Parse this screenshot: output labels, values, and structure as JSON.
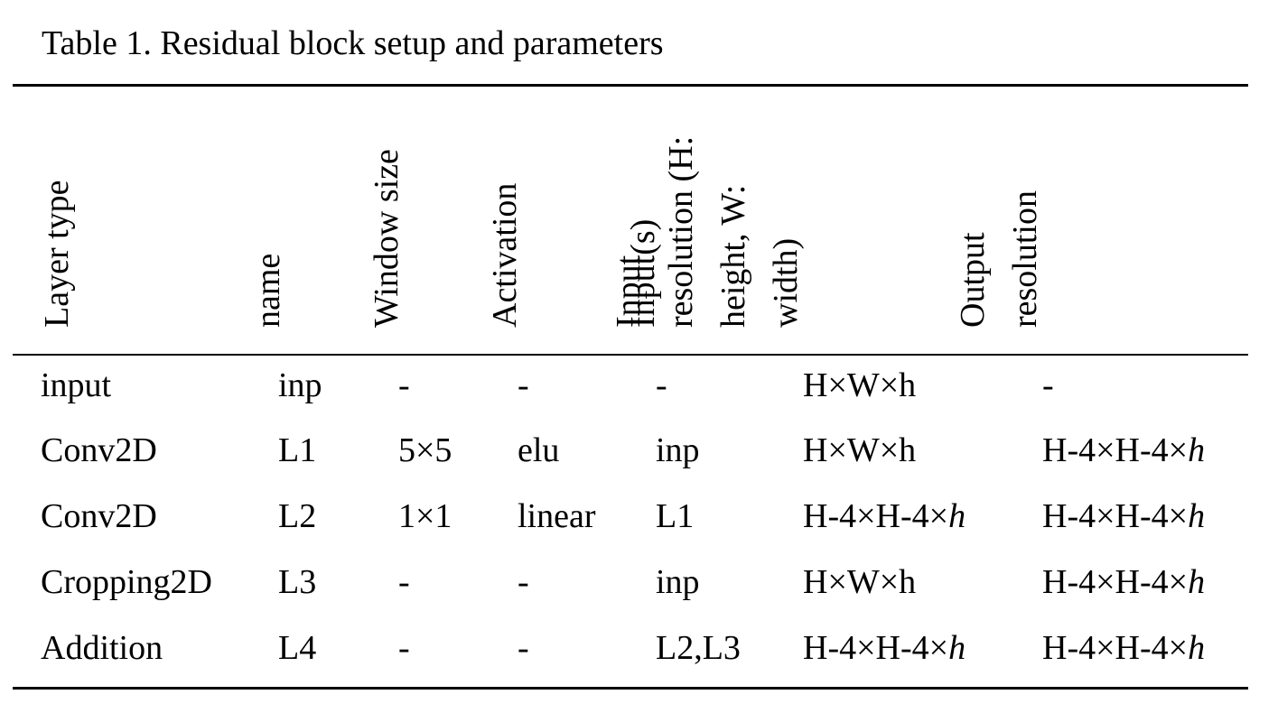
{
  "caption": "Table 1. Residual block setup and parameters",
  "headers": [
    [
      "Layer type"
    ],
    [
      "name"
    ],
    [
      "Window size"
    ],
    [
      "Activation"
    ],
    [
      "Input(s)"
    ],
    [
      "Input",
      "resolution (H:",
      "height, W:",
      "width)"
    ],
    [
      "Output",
      "resolution"
    ]
  ],
  "rows": [
    {
      "layer_type": "input",
      "name": "inp",
      "window_size": "-",
      "activation": "-",
      "inputs": "-",
      "input_resolution": "H×W×h",
      "output_resolution": "-"
    },
    {
      "layer_type": "Conv2D",
      "name": "L1",
      "window_size": "5×5",
      "activation": "elu",
      "inputs": "inp",
      "input_resolution": "H×W×h",
      "output_resolution_prefix": "H-4×H-4×",
      "output_resolution_italic": "h"
    },
    {
      "layer_type": "Conv2D",
      "name": "L2",
      "window_size": "1×1",
      "activation": "linear",
      "inputs": "L1",
      "input_resolution_prefix": "H-4×H-4×",
      "input_resolution_italic": "h",
      "output_resolution_prefix": "H-4×H-4×",
      "output_resolution_italic": "h"
    },
    {
      "layer_type": "Cropping2D",
      "name": "L3",
      "window_size": "-",
      "activation": "-",
      "inputs": "inp",
      "input_resolution": "H×W×h",
      "output_resolution_prefix": "H-4×H-4×",
      "output_resolution_italic": "h"
    },
    {
      "layer_type": "Addition",
      "name": "L4",
      "window_size": "-",
      "activation": "-",
      "inputs": "L2,L3",
      "input_resolution_prefix": "H-4×H-4×",
      "input_resolution_italic": "h",
      "output_resolution_prefix": "H-4×H-4×",
      "output_resolution_italic": "h"
    }
  ]
}
